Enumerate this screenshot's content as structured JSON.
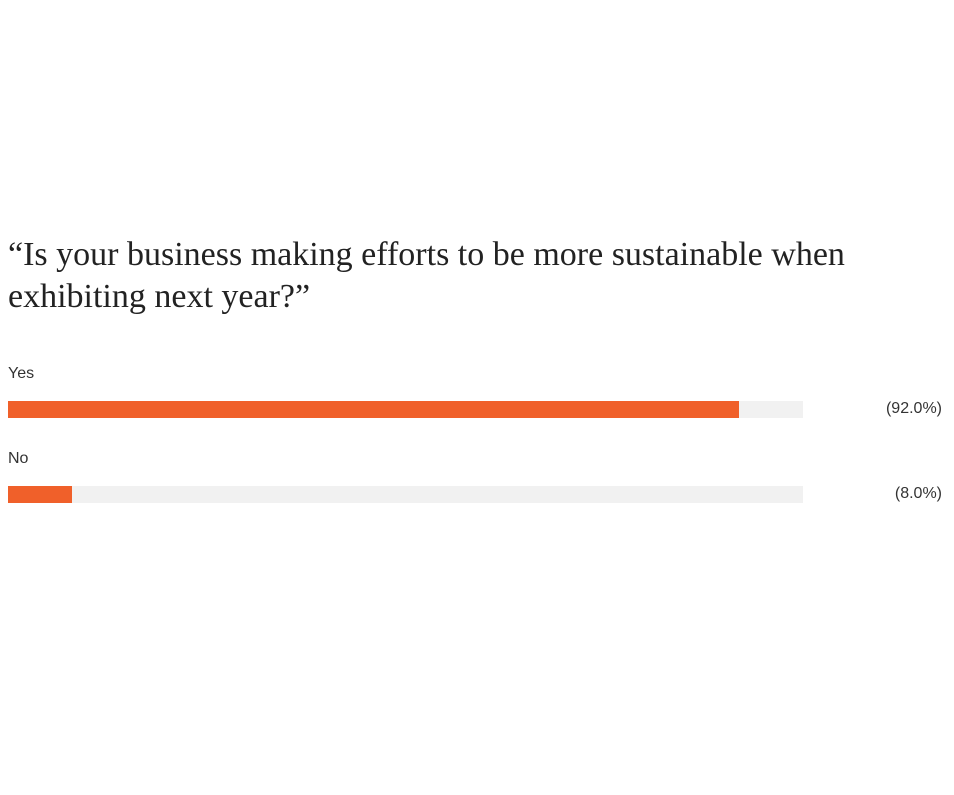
{
  "chart_data": {
    "type": "bar",
    "orientation": "horizontal",
    "title": "“Is your business making efforts to be more sustainable when exhibiting next year?”",
    "categories": [
      "Yes",
      "No"
    ],
    "values": [
      92.0,
      8.0
    ],
    "value_labels": [
      "(92.0%)",
      "(8.0%)"
    ],
    "color": "#f0602a",
    "xlim": [
      0,
      100
    ]
  }
}
